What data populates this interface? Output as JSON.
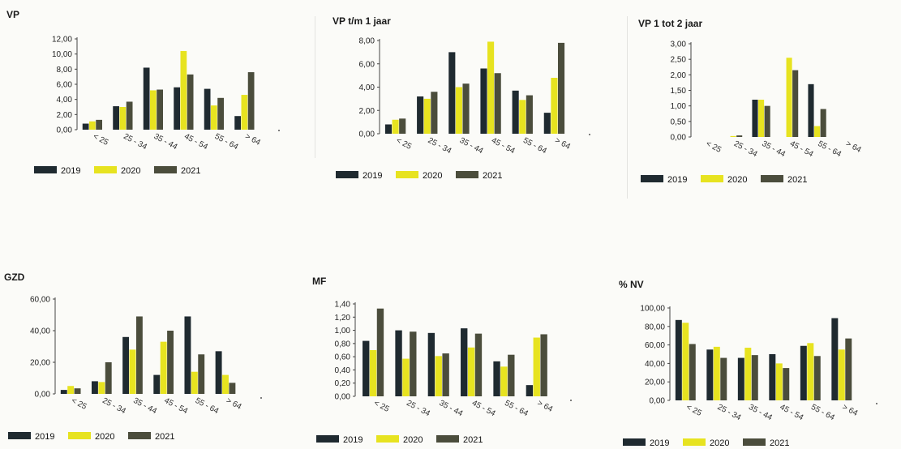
{
  "colors": {
    "2019": "#1f2a30",
    "2020": "#e7e320",
    "2021": "#4b4d3c"
  },
  "legend": [
    "2019",
    "2020",
    "2021"
  ],
  "chart_data": [
    {
      "id": "vp",
      "type": "bar",
      "title": "VP",
      "categories": [
        "< 25",
        "25 - 34",
        "35 - 44",
        "45 - 54",
        "55 - 64",
        "> 64"
      ],
      "ylim": [
        0,
        12
      ],
      "yticks": [
        "0,00",
        "2,00",
        "4,00",
        "6,00",
        "8,00",
        "10,00",
        "12,00"
      ],
      "ytick_values": [
        0,
        2,
        4,
        6,
        8,
        10,
        12
      ],
      "series": [
        {
          "name": "2019",
          "values": [
            0.8,
            3.1,
            8.2,
            5.6,
            5.4,
            1.8
          ]
        },
        {
          "name": "2020",
          "values": [
            1.1,
            3.0,
            5.2,
            10.4,
            3.2,
            4.6
          ]
        },
        {
          "name": "2021",
          "values": [
            1.3,
            3.7,
            5.3,
            7.3,
            4.2,
            7.6
          ]
        }
      ]
    },
    {
      "id": "vp-1jaar",
      "type": "bar",
      "title": "VP t/m 1 jaar",
      "categories": [
        "< 25",
        "25 - 34",
        "35 - 44",
        "45 - 54",
        "55 - 64",
        "> 64"
      ],
      "ylim": [
        0,
        8
      ],
      "yticks": [
        "0,00",
        "2,00",
        "4,00",
        "6,00",
        "8,00"
      ],
      "ytick_values": [
        0,
        2,
        4,
        6,
        8
      ],
      "series": [
        {
          "name": "2019",
          "values": [
            0.8,
            3.2,
            7.0,
            5.6,
            3.7,
            1.8
          ]
        },
        {
          "name": "2020",
          "values": [
            1.2,
            3.0,
            4.0,
            7.9,
            2.9,
            4.8
          ]
        },
        {
          "name": "2021",
          "values": [
            1.3,
            3.6,
            4.3,
            5.2,
            3.3,
            7.8
          ]
        }
      ]
    },
    {
      "id": "vp-1-2jaar",
      "type": "bar",
      "title": "VP 1 tot 2 jaar",
      "categories": [
        "< 25",
        "25 - 34",
        "35 - 44",
        "45 - 54",
        "55 - 64",
        "> 64"
      ],
      "ylim": [
        0,
        3
      ],
      "yticks": [
        "0,00",
        "0,50",
        "1,00",
        "1,50",
        "2,00",
        "2,50",
        "3,00"
      ],
      "ytick_values": [
        0,
        0.5,
        1,
        1.5,
        2,
        2.5,
        3
      ],
      "series": [
        {
          "name": "2019",
          "values": [
            0,
            0.0,
            1.2,
            0,
            1.7,
            0
          ]
        },
        {
          "name": "2020",
          "values": [
            0,
            0.03,
            1.2,
            2.55,
            0.35,
            0
          ]
        },
        {
          "name": "2021",
          "values": [
            0,
            0.05,
            1.0,
            2.15,
            0.9,
            0
          ]
        }
      ]
    },
    {
      "id": "gzd",
      "type": "bar",
      "title": "GZD",
      "categories": [
        "< 25",
        "25 - 34",
        "35 - 44",
        "45 - 54",
        "55 - 64",
        "> 64"
      ],
      "ylim": [
        0,
        60
      ],
      "yticks": [
        "0,00",
        "20,00",
        "40,00",
        "60,00"
      ],
      "ytick_values": [
        0,
        20,
        40,
        60
      ],
      "series": [
        {
          "name": "2019",
          "values": [
            2.5,
            8.0,
            36.0,
            12.0,
            49.0,
            27.0
          ]
        },
        {
          "name": "2020",
          "values": [
            5.0,
            7.5,
            28.0,
            33.0,
            14.0,
            12.0
          ]
        },
        {
          "name": "2021",
          "values": [
            3.5,
            20.0,
            49.0,
            40.0,
            25.0,
            7.0
          ]
        }
      ]
    },
    {
      "id": "mf",
      "type": "bar",
      "title": "MF",
      "categories": [
        "< 25",
        "25 - 34",
        "35 - 44",
        "45 - 54",
        "55 - 64",
        "> 64"
      ],
      "ylim": [
        0,
        1.4
      ],
      "yticks": [
        "0,00",
        "0,20",
        "0,40",
        "0,60",
        "0,80",
        "1,00",
        "1,20",
        "1,40"
      ],
      "ytick_values": [
        0,
        0.2,
        0.4,
        0.6,
        0.8,
        1.0,
        1.2,
        1.4
      ],
      "series": [
        {
          "name": "2019",
          "values": [
            0.84,
            1.0,
            0.96,
            1.03,
            0.53,
            0.17
          ]
        },
        {
          "name": "2020",
          "values": [
            0.7,
            0.57,
            0.61,
            0.74,
            0.45,
            0.89
          ]
        },
        {
          "name": "2021",
          "values": [
            1.33,
            0.98,
            0.65,
            0.95,
            0.63,
            0.94
          ]
        }
      ]
    },
    {
      "id": "nv",
      "type": "bar",
      "title": "% NV",
      "categories": [
        "< 25",
        "25 - 34",
        "35 - 44",
        "45 - 54",
        "55 - 64",
        "> 64"
      ],
      "ylim": [
        0,
        100
      ],
      "yticks": [
        "0,00",
        "20,00",
        "40,00",
        "60,00",
        "80,00",
        "100,00"
      ],
      "ytick_values": [
        0,
        20,
        40,
        60,
        80,
        100
      ],
      "series": [
        {
          "name": "2019",
          "values": [
            87,
            55,
            46,
            50,
            59,
            89
          ]
        },
        {
          "name": "2020",
          "values": [
            84,
            58,
            57,
            40,
            62,
            55
          ]
        },
        {
          "name": "2021",
          "values": [
            61,
            46,
            49,
            35,
            48,
            67
          ]
        }
      ]
    }
  ]
}
